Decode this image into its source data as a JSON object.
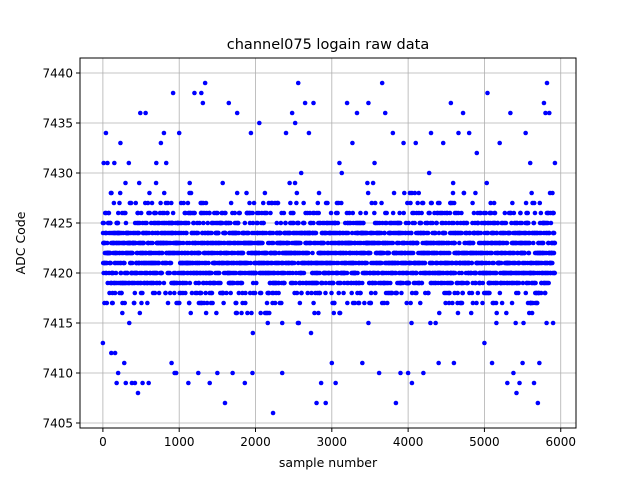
{
  "chart_data": {
    "type": "scatter",
    "title": "channel075 logain raw data",
    "xlabel": "sample number",
    "ylabel": "ADC Code",
    "xlim": [
      -300,
      6200
    ],
    "ylim": [
      7404.5,
      7441.5
    ],
    "xticks": [
      0,
      1000,
      2000,
      3000,
      4000,
      5000,
      6000
    ],
    "yticks": [
      7405,
      7410,
      7415,
      7420,
      7425,
      7430,
      7435,
      7440
    ],
    "grid": true,
    "marker_color": "#0000ff",
    "series": [
      {
        "n_samples": 6000,
        "x_start": 0,
        "x_end": 5924,
        "value_min": 7406,
        "value_max": 7439,
        "dense_range": [
          7412,
          7432
        ],
        "points": [
          {
            "x": 0,
            "y": 7413
          },
          {
            "x": 10,
            "y": 7431
          },
          {
            "x": 40,
            "y": 7434
          },
          {
            "x": 60,
            "y": 7431
          },
          {
            "x": 110,
            "y": 7412
          },
          {
            "x": 150,
            "y": 7431
          },
          {
            "x": 160,
            "y": 7412
          },
          {
            "x": 180,
            "y": 7409
          },
          {
            "x": 200,
            "y": 7410
          },
          {
            "x": 230,
            "y": 7433
          },
          {
            "x": 280,
            "y": 7411
          },
          {
            "x": 300,
            "y": 7409
          },
          {
            "x": 340,
            "y": 7431
          },
          {
            "x": 380,
            "y": 7409
          },
          {
            "x": 420,
            "y": 7409
          },
          {
            "x": 460,
            "y": 7408
          },
          {
            "x": 490,
            "y": 7436
          },
          {
            "x": 520,
            "y": 7409
          },
          {
            "x": 560,
            "y": 7436
          },
          {
            "x": 600,
            "y": 7409
          },
          {
            "x": 700,
            "y": 7431
          },
          {
            "x": 760,
            "y": 7433
          },
          {
            "x": 800,
            "y": 7434
          },
          {
            "x": 830,
            "y": 7431
          },
          {
            "x": 900,
            "y": 7411
          },
          {
            "x": 920,
            "y": 7438
          },
          {
            "x": 940,
            "y": 7410
          },
          {
            "x": 960,
            "y": 7410
          },
          {
            "x": 1000,
            "y": 7434
          },
          {
            "x": 1120,
            "y": 7409
          },
          {
            "x": 1200,
            "y": 7438
          },
          {
            "x": 1250,
            "y": 7410
          },
          {
            "x": 1290,
            "y": 7438
          },
          {
            "x": 1310,
            "y": 7437
          },
          {
            "x": 1340,
            "y": 7439
          },
          {
            "x": 1400,
            "y": 7409
          },
          {
            "x": 1500,
            "y": 7410
          },
          {
            "x": 1600,
            "y": 7407
          },
          {
            "x": 1650,
            "y": 7437
          },
          {
            "x": 1700,
            "y": 7410
          },
          {
            "x": 1760,
            "y": 7436
          },
          {
            "x": 1860,
            "y": 7409
          },
          {
            "x": 1940,
            "y": 7434
          },
          {
            "x": 1960,
            "y": 7410
          },
          {
            "x": 2050,
            "y": 7435
          },
          {
            "x": 2230,
            "y": 7406
          },
          {
            "x": 2350,
            "y": 7410
          },
          {
            "x": 2400,
            "y": 7434
          },
          {
            "x": 2480,
            "y": 7436
          },
          {
            "x": 2520,
            "y": 7435
          },
          {
            "x": 2560,
            "y": 7439
          },
          {
            "x": 2650,
            "y": 7437
          },
          {
            "x": 2700,
            "y": 7434
          },
          {
            "x": 2760,
            "y": 7437
          },
          {
            "x": 2800,
            "y": 7407
          },
          {
            "x": 2860,
            "y": 7409
          },
          {
            "x": 2920,
            "y": 7407
          },
          {
            "x": 3000,
            "y": 7411
          },
          {
            "x": 3050,
            "y": 7409
          },
          {
            "x": 3100,
            "y": 7431
          },
          {
            "x": 3200,
            "y": 7437
          },
          {
            "x": 3270,
            "y": 7433
          },
          {
            "x": 3330,
            "y": 7436
          },
          {
            "x": 3400,
            "y": 7411
          },
          {
            "x": 3480,
            "y": 7437
          },
          {
            "x": 3560,
            "y": 7431
          },
          {
            "x": 3620,
            "y": 7410
          },
          {
            "x": 3660,
            "y": 7439
          },
          {
            "x": 3700,
            "y": 7436
          },
          {
            "x": 3800,
            "y": 7434
          },
          {
            "x": 3840,
            "y": 7407
          },
          {
            "x": 3900,
            "y": 7410
          },
          {
            "x": 3940,
            "y": 7433
          },
          {
            "x": 4000,
            "y": 7410
          },
          {
            "x": 4050,
            "y": 7409
          },
          {
            "x": 4100,
            "y": 7433
          },
          {
            "x": 4200,
            "y": 7410
          },
          {
            "x": 4300,
            "y": 7434
          },
          {
            "x": 4400,
            "y": 7411
          },
          {
            "x": 4460,
            "y": 7433
          },
          {
            "x": 4560,
            "y": 7437
          },
          {
            "x": 4600,
            "y": 7411
          },
          {
            "x": 4660,
            "y": 7434
          },
          {
            "x": 4720,
            "y": 7436
          },
          {
            "x": 4800,
            "y": 7434
          },
          {
            "x": 4900,
            "y": 7432
          },
          {
            "x": 5000,
            "y": 7413
          },
          {
            "x": 5040,
            "y": 7438
          },
          {
            "x": 5100,
            "y": 7411
          },
          {
            "x": 5200,
            "y": 7433
          },
          {
            "x": 5300,
            "y": 7409
          },
          {
            "x": 5340,
            "y": 7436
          },
          {
            "x": 5380,
            "y": 7410
          },
          {
            "x": 5420,
            "y": 7408
          },
          {
            "x": 5460,
            "y": 7409
          },
          {
            "x": 5500,
            "y": 7411
          },
          {
            "x": 5540,
            "y": 7434
          },
          {
            "x": 5600,
            "y": 7431
          },
          {
            "x": 5650,
            "y": 7409
          },
          {
            "x": 5700,
            "y": 7407
          },
          {
            "x": 5720,
            "y": 7411
          },
          {
            "x": 5780,
            "y": 7437
          },
          {
            "x": 5800,
            "y": 7436
          },
          {
            "x": 5820,
            "y": 7439
          },
          {
            "x": 5850,
            "y": 7436
          },
          {
            "x": 5900,
            "y": 7415
          },
          {
            "x": 5924,
            "y": 7431
          }
        ]
      }
    ]
  }
}
